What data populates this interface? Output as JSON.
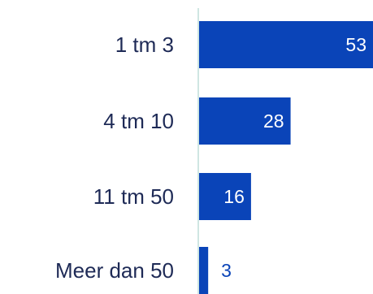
{
  "chart_data": {
    "type": "bar",
    "orientation": "horizontal",
    "categories": [
      "1 tm 3",
      "4 tm 10",
      "11 tm 50",
      "Meer dan 50"
    ],
    "values": [
      53,
      28,
      16,
      3
    ],
    "value_labels": [
      "53",
      "28",
      "16",
      "3"
    ],
    "title": "",
    "xlabel": "",
    "ylabel": "",
    "xlim": [
      0,
      53
    ],
    "grid": false,
    "legend": "none"
  },
  "colors": {
    "bar": "#0a44b8",
    "axis": "#cfe6e2",
    "category_text": "#1e2a56",
    "value_text_on_bar": "#ffffff",
    "value_text_outside": "#0a44b8"
  }
}
